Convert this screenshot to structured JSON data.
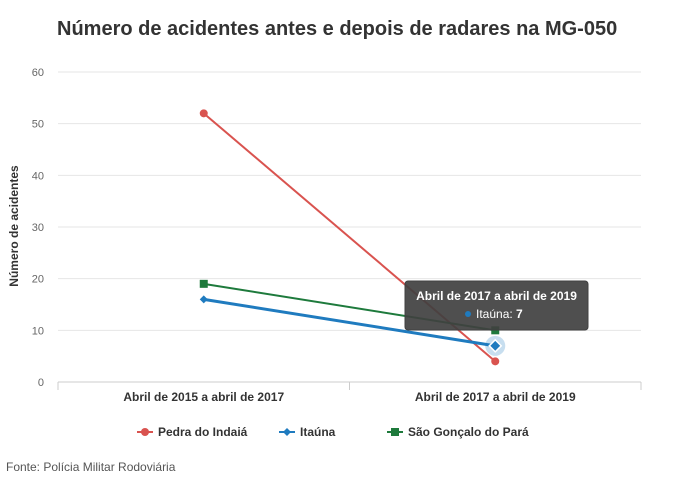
{
  "title": "Número de acidentes antes e depois de radares na MG-050",
  "source": "Fonte: Polícia Militar Rodoviária",
  "tooltip": {
    "header": "Abril de 2017 a abril de 2019",
    "series_name": "Itaúna",
    "value": "7"
  },
  "chart_data": {
    "type": "line",
    "title": "Número de acidentes antes e depois de radares na MG-050",
    "xlabel": "",
    "ylabel": "Número de acidentes",
    "categories": [
      "Abril de 2015 a abril de 2017",
      "Abril de 2017 a abril de 2019"
    ],
    "ylim": [
      0,
      60
    ],
    "yticks": [
      "0",
      "10",
      "20",
      "30",
      "40",
      "50",
      "60"
    ],
    "grid": true,
    "legend_position": "bottom",
    "series": [
      {
        "name": "Pedra do Indaiá",
        "values": [
          52,
          4
        ],
        "color": "#d9534f",
        "marker": "circle"
      },
      {
        "name": "Itaúna",
        "values": [
          16,
          7
        ],
        "color": "#1f7bbf",
        "marker": "diamond"
      },
      {
        "name": "São Gonçalo do Pará",
        "values": [
          19,
          10
        ],
        "color": "#1e7a3c",
        "marker": "square"
      }
    ]
  }
}
